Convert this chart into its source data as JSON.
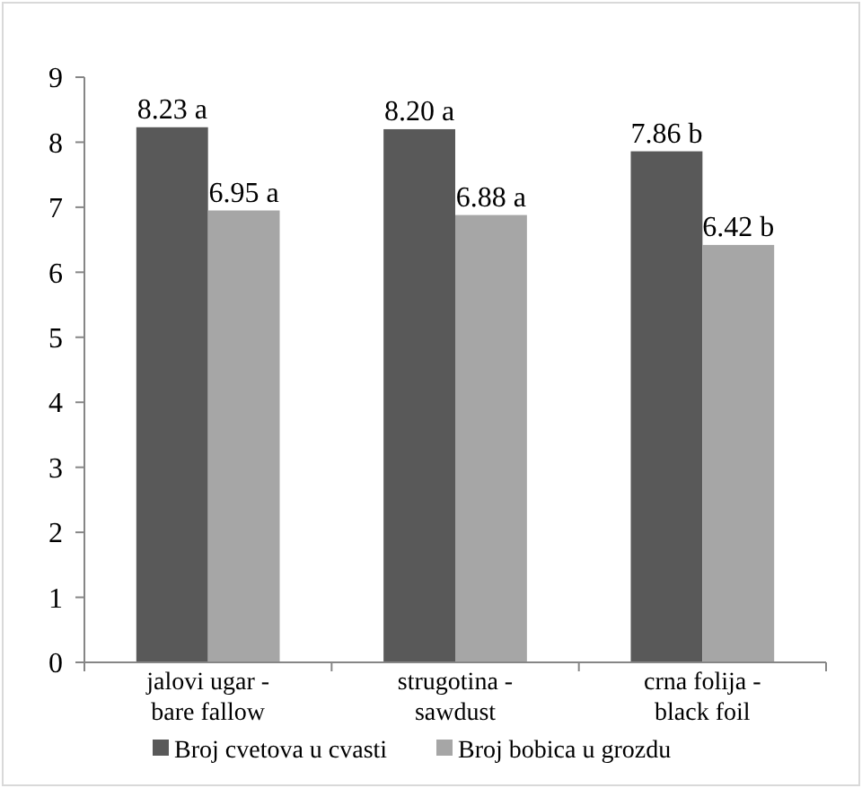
{
  "chart_data": {
    "type": "bar",
    "categories": [
      "jalovi ugar -\nbare fallow",
      "strugotina -\nsawdust",
      "crna folija -\nblack foil"
    ],
    "series": [
      {
        "name": "Broj cvetova u cvasti",
        "color": "#595959",
        "values": [
          8.23,
          8.2,
          7.86
        ],
        "value_labels": [
          "8.23 a",
          "8.20 a",
          "7.86 b"
        ]
      },
      {
        "name": "Broj bobica u grozdu",
        "color": "#a6a6a6",
        "values": [
          6.95,
          6.88,
          6.42
        ],
        "value_labels": [
          "6.95 a",
          "6.88 a",
          "6.42 b"
        ]
      }
    ],
    "ylim": [
      0,
      9
    ],
    "yticks": [
      0,
      1,
      2,
      3,
      4,
      5,
      6,
      7,
      8,
      9
    ],
    "grid": false,
    "legend": "bottom"
  }
}
